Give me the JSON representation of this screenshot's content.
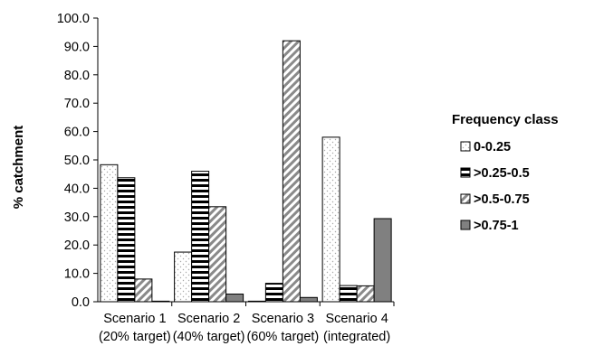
{
  "chart_data": {
    "type": "bar",
    "title": "",
    "xlabel": "",
    "ylabel": "% catchment",
    "ylim": [
      0,
      100
    ],
    "ytick_step": 10,
    "grid": false,
    "categories": [
      [
        "Scenario 1",
        "(20% target)"
      ],
      [
        "Scenario 2",
        "(40% target)"
      ],
      [
        "Scenario 3",
        "(60% target)"
      ],
      [
        "Scenario 4",
        "(integrated)"
      ]
    ],
    "legend": {
      "title": "Frequency class",
      "placement": "right"
    },
    "series": [
      {
        "name": "0-0.25",
        "pattern": "dots",
        "values": [
          48.3,
          17.5,
          0.2,
          58.0
        ]
      },
      {
        "name": ">0.25-0.5",
        "pattern": "horizontal-stripes",
        "values": [
          43.7,
          46.0,
          6.5,
          5.7
        ]
      },
      {
        "name": ">0.5-0.75",
        "pattern": "diagonal-stripes",
        "values": [
          8.0,
          33.5,
          92.0,
          5.6
        ]
      },
      {
        "name": ">0.75-1",
        "pattern": "solid-gray",
        "color": "#808080",
        "values": [
          0.2,
          2.7,
          1.5,
          29.3
        ]
      }
    ]
  }
}
